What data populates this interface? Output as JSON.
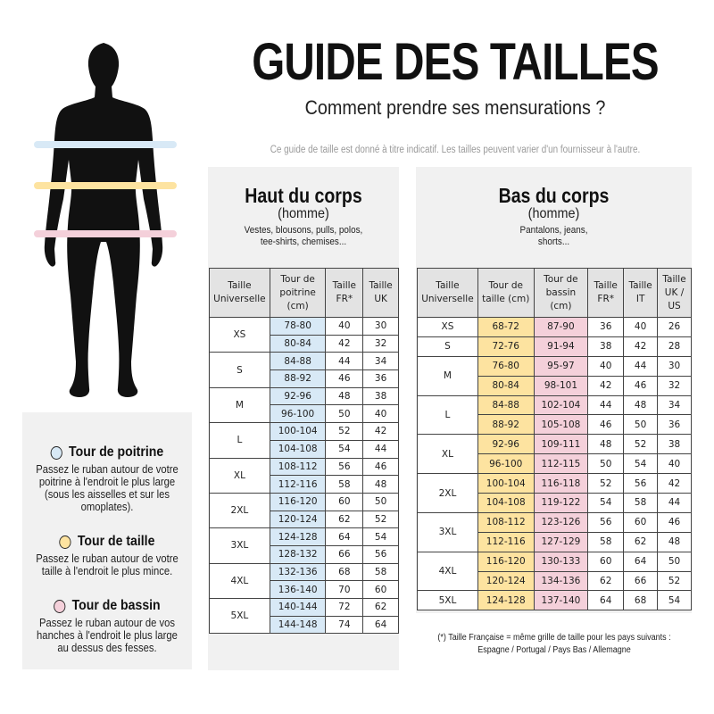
{
  "header": {
    "title": "GUIDE DES TAILLES",
    "subtitle": "Comment prendre ses mensurations ?",
    "note": "Ce guide de taille est donné à titre indicatif. Les tailles peuvent varier d'un fournisseur à l'autre."
  },
  "colors": {
    "poitrine": "#d8e9f6",
    "taille": "#fde3a0",
    "bassin": "#f4d0da",
    "panel": "#f1f1f1"
  },
  "legend": [
    {
      "title": "Tour de poitrine",
      "text": "Passez le ruban autour de votre poitrine à l'endroit le plus large (sous les aisselles et sur les omoplates)."
    },
    {
      "title": "Tour de taille",
      "text": "Passez le ruban autour de votre taille à l'endroit le plus mince."
    },
    {
      "title": "Tour de bassin",
      "text": "Passez le ruban autour de vos hanches à l'endroit le plus large au dessus des fesses."
    }
  ],
  "haut": {
    "title": "Haut du corps",
    "sub": "(homme)",
    "cat": "Vestes, blousons, pulls, polos, tee-shirts, chemises...",
    "headers": [
      "Taille Universelle",
      "Tour de poitrine (cm)",
      "Taille FR*",
      "Taille UK"
    ],
    "groups": [
      {
        "size": "XS",
        "rows": [
          [
            "78-80",
            "40",
            "30"
          ],
          [
            "80-84",
            "42",
            "32"
          ]
        ]
      },
      {
        "size": "S",
        "rows": [
          [
            "84-88",
            "44",
            "34"
          ],
          [
            "88-92",
            "46",
            "36"
          ]
        ]
      },
      {
        "size": "M",
        "rows": [
          [
            "92-96",
            "48",
            "38"
          ],
          [
            "96-100",
            "50",
            "40"
          ]
        ]
      },
      {
        "size": "L",
        "rows": [
          [
            "100-104",
            "52",
            "42"
          ],
          [
            "104-108",
            "54",
            "44"
          ]
        ]
      },
      {
        "size": "XL",
        "rows": [
          [
            "108-112",
            "56",
            "46"
          ],
          [
            "112-116",
            "58",
            "48"
          ]
        ]
      },
      {
        "size": "2XL",
        "rows": [
          [
            "116-120",
            "60",
            "50"
          ],
          [
            "120-124",
            "62",
            "52"
          ]
        ]
      },
      {
        "size": "3XL",
        "rows": [
          [
            "124-128",
            "64",
            "54"
          ],
          [
            "128-132",
            "66",
            "56"
          ]
        ]
      },
      {
        "size": "4XL",
        "rows": [
          [
            "132-136",
            "68",
            "58"
          ],
          [
            "136-140",
            "70",
            "60"
          ]
        ]
      },
      {
        "size": "5XL",
        "rows": [
          [
            "140-144",
            "72",
            "62"
          ],
          [
            "144-148",
            "74",
            "64"
          ]
        ]
      }
    ]
  },
  "bas": {
    "title": "Bas du corps",
    "sub": "(homme)",
    "cat": "Pantalons, jeans, shorts...",
    "headers": [
      "Taille Universelle",
      "Tour de taille (cm)",
      "Tour de bassin (cm)",
      "Taille FR*",
      "Taille IT",
      "Taille UK / US"
    ],
    "groups": [
      {
        "size": "XS",
        "rows": [
          [
            "68-72",
            "87-90",
            "36",
            "40",
            "26"
          ]
        ]
      },
      {
        "size": "S",
        "rows": [
          [
            "72-76",
            "91-94",
            "38",
            "42",
            "28"
          ]
        ]
      },
      {
        "size": "M",
        "rows": [
          [
            "76-80",
            "95-97",
            "40",
            "44",
            "30"
          ],
          [
            "80-84",
            "98-101",
            "42",
            "46",
            "32"
          ]
        ]
      },
      {
        "size": "L",
        "rows": [
          [
            "84-88",
            "102-104",
            "44",
            "48",
            "34"
          ],
          [
            "88-92",
            "105-108",
            "46",
            "50",
            "36"
          ]
        ]
      },
      {
        "size": "XL",
        "rows": [
          [
            "92-96",
            "109-111",
            "48",
            "52",
            "38"
          ],
          [
            "96-100",
            "112-115",
            "50",
            "54",
            "40"
          ]
        ]
      },
      {
        "size": "2XL",
        "rows": [
          [
            "100-104",
            "116-118",
            "52",
            "56",
            "42"
          ],
          [
            "104-108",
            "119-122",
            "54",
            "58",
            "44"
          ]
        ]
      },
      {
        "size": "3XL",
        "rows": [
          [
            "108-112",
            "123-126",
            "56",
            "60",
            "46"
          ],
          [
            "112-116",
            "127-129",
            "58",
            "62",
            "48"
          ]
        ]
      },
      {
        "size": "4XL",
        "rows": [
          [
            "116-120",
            "130-133",
            "60",
            "64",
            "50"
          ],
          [
            "120-124",
            "134-136",
            "62",
            "66",
            "52"
          ]
        ]
      },
      {
        "size": "5XL",
        "rows": [
          [
            "124-128",
            "137-140",
            "64",
            "68",
            "54"
          ]
        ]
      }
    ]
  },
  "footnote": [
    "(*) Taille Française = même grille de taille pour les pays suivants :",
    "Espagne / Portugal / Pays Bas / Allemagne"
  ]
}
